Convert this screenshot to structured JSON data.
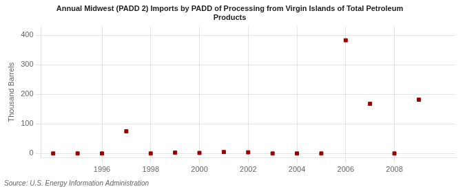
{
  "chart_data": {
    "type": "scatter",
    "title": "Annual Midwest (PADD 2) Imports by PADD of Processing from Virgin Islands of Total Petroleum\nProducts",
    "ylabel": "Thousand Barrels",
    "annotation": "Source: U.S. Energy Information Administration",
    "x": [
      1994,
      1995,
      1996,
      1997,
      1998,
      1999,
      2000,
      2001,
      2002,
      2003,
      2004,
      2005,
      2006,
      2007,
      2008,
      2009
    ],
    "values": [
      0,
      0,
      0,
      75,
      0,
      3,
      2,
      5,
      4,
      0,
      0,
      0,
      383,
      168,
      0,
      182
    ],
    "color": "#990000",
    "marker": "square",
    "xlim": [
      1993.5,
      2010.5
    ],
    "xticks": [
      1996,
      1998,
      2000,
      2002,
      2004,
      2006,
      2008
    ],
    "ylim": [
      -15,
      430
    ],
    "yticks": [
      0,
      100,
      200,
      300,
      400
    ],
    "grid": true
  }
}
